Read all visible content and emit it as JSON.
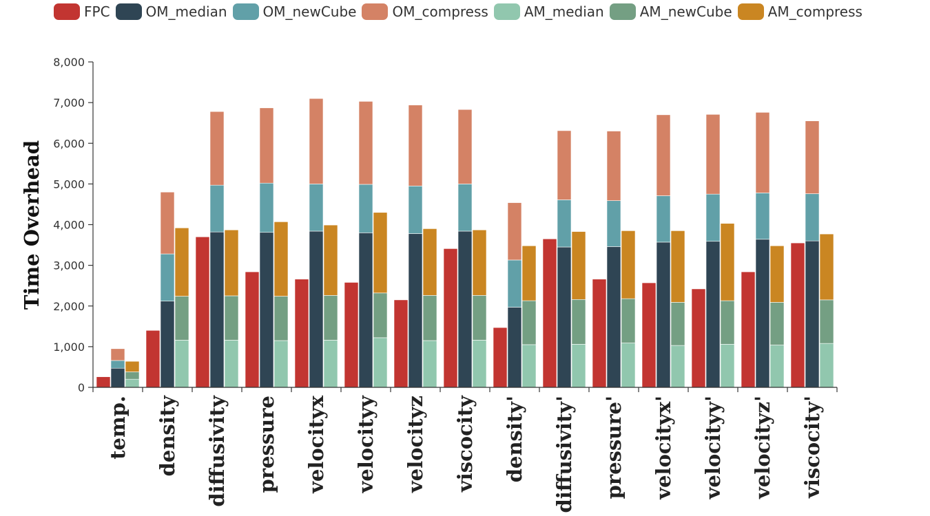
{
  "chart_data": {
    "type": "bar",
    "ylabel": "Time Overhead",
    "ylim": [
      0,
      8000
    ],
    "yticks": [
      0,
      1000,
      2000,
      3000,
      4000,
      5000,
      6000,
      7000,
      8000
    ],
    "ytick_labels": [
      "0",
      "1,000",
      "2,000",
      "3,000",
      "4,000",
      "5,000",
      "6,000",
      "7,000",
      "8,000"
    ],
    "legend_position": "top",
    "categories": [
      "temp.",
      "density",
      "diffusivity",
      "pressure",
      "velocityx",
      "velocityy",
      "velocityz",
      "viscocity",
      "density'",
      "diffusivity'",
      "pressure'",
      "velocityx'",
      "velocityy'",
      "velocityz'",
      "viscocity'"
    ],
    "series": [
      {
        "name": "FPC",
        "color": "#c23531",
        "stack": "FPC",
        "values": [
          260,
          1400,
          3700,
          2840,
          2660,
          2580,
          2150,
          3410,
          1470,
          3650,
          2660,
          2570,
          2420,
          2840,
          3550
        ]
      },
      {
        "name": "OM_median",
        "color": "#2f4554",
        "stack": "OM",
        "values": [
          470,
          2120,
          3820,
          3810,
          3840,
          3800,
          3780,
          3840,
          1970,
          3450,
          3460,
          3570,
          3590,
          3640,
          3600
        ]
      },
      {
        "name": "OM_newCube",
        "color": "#61a0a8",
        "stack": "OM",
        "values": [
          190,
          1160,
          1150,
          1210,
          1160,
          1190,
          1170,
          1160,
          1160,
          1160,
          1130,
          1140,
          1160,
          1140,
          1160
        ]
      },
      {
        "name": "OM_compress",
        "color": "#d48265",
        "stack": "OM",
        "values": [
          290,
          1520,
          1810,
          1850,
          2100,
          2040,
          1990,
          1830,
          1410,
          1700,
          1710,
          1990,
          1960,
          1980,
          1790
        ]
      },
      {
        "name": "AM_median",
        "color": "#91c7ae",
        "stack": "AM",
        "values": [
          200,
          1160,
          1160,
          1150,
          1160,
          1220,
          1150,
          1160,
          1050,
          1060,
          1090,
          1030,
          1060,
          1040,
          1080
        ]
      },
      {
        "name": "AM_newCube",
        "color": "#749f83",
        "stack": "AM",
        "values": [
          180,
          1080,
          1090,
          1090,
          1100,
          1100,
          1110,
          1100,
          1080,
          1100,
          1090,
          1060,
          1070,
          1050,
          1070
        ]
      },
      {
        "name": "AM_compress",
        "color": "#ca8622",
        "stack": "AM",
        "values": [
          260,
          1680,
          1620,
          1830,
          1730,
          1980,
          1640,
          1610,
          1350,
          1670,
          1670,
          1760,
          1900,
          1390,
          1620
        ]
      }
    ]
  }
}
